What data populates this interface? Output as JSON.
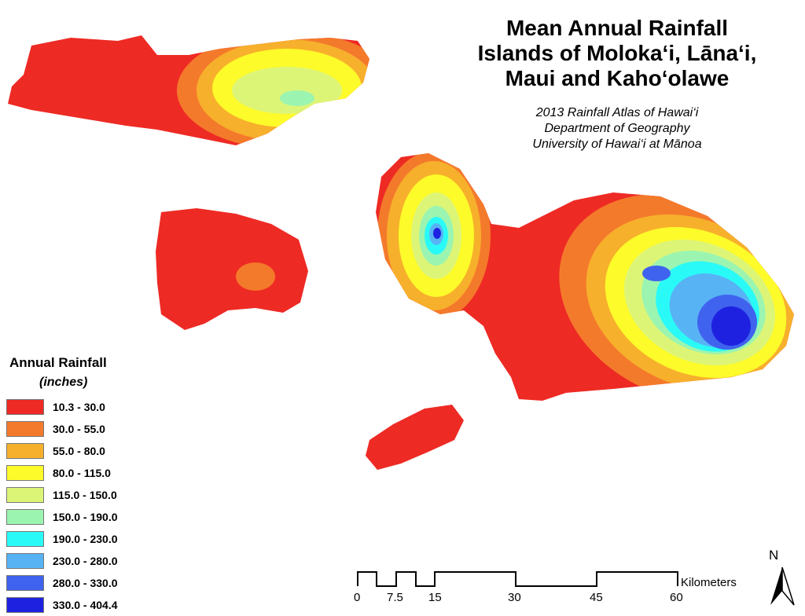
{
  "title": {
    "lines": [
      "Mean Annual Rainfall",
      "Islands of Moloka‘i, Lāna‘i,",
      "Maui and Kaho‘olawe"
    ]
  },
  "subtitle": {
    "lines": [
      "2013 Rainfall Atlas of Hawai‘i",
      "Department of Geography",
      "University of Hawai‘i at Mānoa"
    ]
  },
  "legend": {
    "title": "Annual Rainfall",
    "units": "(inches)",
    "items": [
      {
        "label": "10.3 - 30.0",
        "color": "#ee2a24"
      },
      {
        "label": "30.0 - 55.0",
        "color": "#f47a2b"
      },
      {
        "label": "55.0 - 80.0",
        "color": "#f7b02c"
      },
      {
        "label": "80.0 - 115.0",
        "color": "#fdfb2a"
      },
      {
        "label": "115.0 - 150.0",
        "color": "#ddf577"
      },
      {
        "label": "150.0 - 190.0",
        "color": "#9bf5b0"
      },
      {
        "label": "190.0 - 230.0",
        "color": "#2afaf7"
      },
      {
        "label": "230.0 - 280.0",
        "color": "#58b3f5"
      },
      {
        "label": "280.0 - 330.0",
        "color": "#3f63ee"
      },
      {
        "label": "330.0 - 404.4",
        "color": "#1e22e0"
      }
    ]
  },
  "scale_bar": {
    "ticks": [
      "0",
      "7.5",
      "15",
      "30",
      "45",
      "60"
    ],
    "unit": "Kilometers"
  },
  "north_arrow": {
    "label": "N",
    "icon": "north-arrow-icon"
  }
}
